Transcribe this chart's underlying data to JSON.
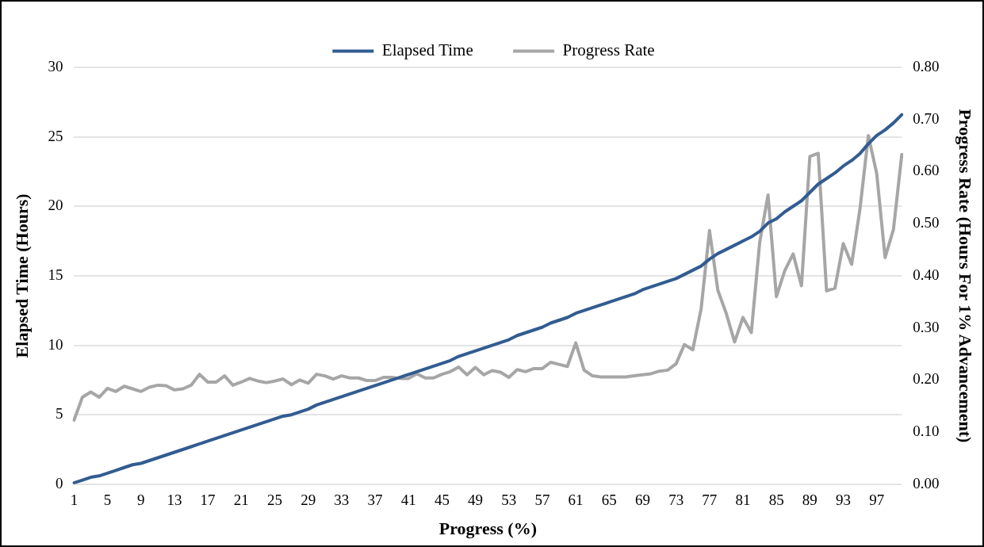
{
  "chart_data": {
    "type": "line",
    "xlabel": "Progress (%)",
    "ylabel": "Elapsed Time (Hours)",
    "y2label": "Progress Rate (Hours For 1% Advancement)",
    "categories": [
      "1",
      null,
      null,
      null,
      "5",
      null,
      null,
      null,
      "9",
      null,
      null,
      null,
      "13",
      null,
      null,
      null,
      "17",
      null,
      null,
      null,
      "21",
      null,
      null,
      null,
      "25",
      null,
      null,
      null,
      "29",
      null,
      null,
      null,
      "33",
      null,
      null,
      null,
      "37",
      null,
      null,
      null,
      "41",
      null,
      null,
      null,
      "45",
      null,
      null,
      null,
      "49",
      null,
      null,
      null,
      "53",
      null,
      null,
      null,
      "57",
      null,
      null,
      null,
      "61",
      null,
      null,
      null,
      "65",
      null,
      null,
      null,
      "69",
      null,
      null,
      null,
      "73",
      null,
      null,
      null,
      "77",
      null,
      null,
      null,
      "81",
      null,
      null,
      null,
      "85",
      null,
      null,
      null,
      "89",
      null,
      null,
      null,
      "93",
      null,
      null,
      null,
      "97",
      null,
      null,
      null
    ],
    "series": [
      {
        "name": "Elapsed Time",
        "color": "#325c91",
        "values": [
          0.1,
          0.3,
          0.5,
          0.6,
          0.8,
          1.0,
          1.2,
          1.4,
          1.5,
          1.7,
          1.9,
          2.1,
          2.3,
          2.5,
          2.7,
          2.9,
          3.1,
          3.3,
          3.5,
          3.7,
          3.9,
          4.1,
          4.3,
          4.5,
          4.7,
          4.9,
          5.0,
          5.2,
          5.4,
          5.7,
          5.9,
          6.1,
          6.3,
          6.5,
          6.7,
          6.9,
          7.1,
          7.3,
          7.5,
          7.7,
          7.9,
          8.1,
          8.3,
          8.5,
          8.7,
          8.9,
          9.2,
          9.4,
          9.6,
          9.8,
          10.0,
          10.2,
          10.4,
          10.7,
          10.9,
          11.1,
          11.3,
          11.6,
          11.8,
          12.0,
          12.3,
          12.5,
          12.7,
          12.9,
          13.1,
          13.3,
          13.5,
          13.7,
          14.0,
          14.2,
          14.4,
          14.6,
          14.8,
          15.1,
          15.4,
          15.7,
          16.2,
          16.6,
          16.9,
          17.2,
          17.5,
          17.8,
          18.2,
          18.8,
          19.1,
          19.6,
          20.0,
          20.4,
          21.0,
          21.6,
          22.0,
          22.4,
          22.9,
          23.3,
          23.8,
          24.5,
          25.1,
          25.5,
          26.0,
          26.6
        ]
      },
      {
        "name": "Progress Rate",
        "color": "#a6a6a6",
        "axis": "y2",
        "values": [
          0.123,
          0.167,
          0.177,
          0.167,
          0.184,
          0.178,
          0.188,
          0.183,
          0.178,
          0.186,
          0.19,
          0.189,
          0.181,
          0.183,
          0.19,
          0.211,
          0.196,
          0.196,
          0.208,
          0.19,
          0.196,
          0.203,
          0.198,
          0.195,
          0.198,
          0.202,
          0.191,
          0.2,
          0.194,
          0.211,
          0.208,
          0.202,
          0.208,
          0.204,
          0.204,
          0.199,
          0.199,
          0.205,
          0.205,
          0.203,
          0.203,
          0.212,
          0.204,
          0.204,
          0.211,
          0.216,
          0.225,
          0.21,
          0.224,
          0.21,
          0.218,
          0.215,
          0.205,
          0.22,
          0.216,
          0.222,
          0.222,
          0.234,
          0.23,
          0.226,
          0.271,
          0.219,
          0.208,
          0.206,
          0.206,
          0.206,
          0.206,
          0.208,
          0.21,
          0.212,
          0.217,
          0.219,
          0.231,
          0.268,
          0.258,
          0.337,
          0.487,
          0.372,
          0.328,
          0.273,
          0.32,
          0.291,
          0.464,
          0.555,
          0.36,
          0.41,
          0.442,
          0.381,
          0.629,
          0.635,
          0.371,
          0.376,
          0.462,
          0.422,
          0.529,
          0.669,
          0.596,
          0.435,
          0.489,
          0.633
        ]
      }
    ],
    "ylim": [
      0,
      30
    ],
    "yticks": [
      0,
      5,
      10,
      15,
      20,
      25,
      30
    ],
    "y2lim": [
      0,
      0.8
    ],
    "y2ticks": [
      {
        "value": 0,
        "label": "0.00"
      },
      {
        "value": 0.1,
        "label": "0.10"
      },
      {
        "value": 0.2,
        "label": "0.20"
      },
      {
        "value": 0.3,
        "label": "0.30"
      },
      {
        "value": 0.4,
        "label": "0.40"
      },
      {
        "value": 0.5,
        "label": "0.50"
      },
      {
        "value": 0.6,
        "label": "0.60"
      },
      {
        "value": 0.7,
        "label": "0.70"
      },
      {
        "value": 0.8,
        "label": "0.80"
      }
    ],
    "grid": "y",
    "legend": "top",
    "marker": "none",
    "line_style": "solid"
  }
}
